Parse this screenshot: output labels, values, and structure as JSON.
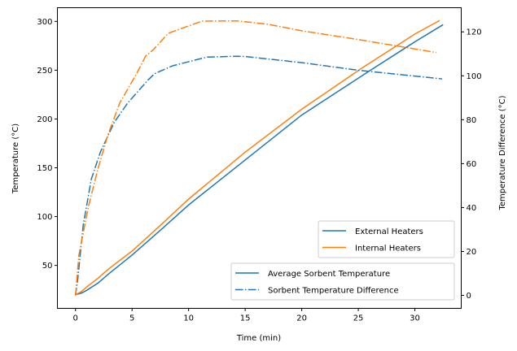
{
  "chart_data": {
    "type": "line",
    "xlabel": "Time (min)",
    "ylabel": "Temperature (°C)",
    "y2label": "Temperature Difference (°C)",
    "xlim": [
      -1.6,
      34.1
    ],
    "ylim": [
      6,
      314
    ],
    "y2lim": [
      -5.9,
      131
    ],
    "grid": false,
    "xticks": [
      0,
      5,
      10,
      15,
      20,
      25,
      30
    ],
    "yticks": [
      50,
      100,
      150,
      200,
      250,
      300
    ],
    "y2ticks": [
      0,
      20,
      40,
      60,
      80,
      100,
      120
    ],
    "colors": {
      "external": "#1f77b4",
      "internal": "#ff7f0e"
    },
    "series": [
      {
        "heater": "external",
        "axis": "left",
        "style": "solid",
        "x": [
          0,
          0.5,
          1,
          2,
          3,
          5,
          7.5,
          10,
          15,
          20,
          26,
          30,
          32.5
        ],
        "y": [
          20,
          21.5,
          24.5,
          32,
          42,
          60.6,
          86,
          112,
          158,
          204,
          249.4,
          279,
          296.7
        ]
      },
      {
        "heater": "internal",
        "axis": "left",
        "style": "solid",
        "x": [
          0,
          0.5,
          1,
          2,
          3,
          5,
          7.5,
          10,
          15,
          20,
          25.3,
          30,
          32.2
        ],
        "y": [
          20,
          23,
          28,
          37,
          47,
          64.7,
          91,
          118,
          166,
          210,
          252,
          287,
          301
        ]
      },
      {
        "heater": "external",
        "axis": "right",
        "style": "dashdot",
        "x": [
          0,
          0.2,
          0.68,
          1.4,
          2.2,
          3.44,
          4.6,
          6.4,
          7.0,
          8.6,
          11.6,
          14.3,
          15,
          20,
          25,
          32.4
        ],
        "y": [
          0,
          7.3,
          32,
          53,
          65.3,
          78.9,
          87.5,
          98,
          101,
          104.6,
          108.5,
          108.9,
          108.8,
          106,
          102.5,
          98.6
        ]
      },
      {
        "heater": "internal",
        "axis": "right",
        "style": "dashdot",
        "x": [
          0,
          0.3,
          1.15,
          2.0,
          2.84,
          3.9,
          5.4,
          6.2,
          6.9,
          8.2,
          11.2,
          14.3,
          17,
          20,
          25,
          31.9
        ],
        "y": [
          0,
          18.4,
          40.6,
          57.9,
          72.7,
          87.5,
          101,
          109,
          112,
          119.4,
          124.9,
          125,
          123.5,
          120.5,
          116.5,
          110.6
        ]
      }
    ],
    "legends": [
      {
        "placement": "lower-right-upper",
        "entries": [
          {
            "label": "External Heaters",
            "color": "#1f77b4",
            "style": "solid"
          },
          {
            "label": "Internal Heaters",
            "color": "#ff7f0e",
            "style": "solid"
          }
        ]
      },
      {
        "placement": "lower-right",
        "entries": [
          {
            "label": "Average Sorbent Temperature",
            "color": "#1f77b4",
            "style": "solid"
          },
          {
            "label": "Sorbent Temperature Difference",
            "color": "#1f77b4",
            "style": "dashdot"
          }
        ]
      }
    ]
  }
}
